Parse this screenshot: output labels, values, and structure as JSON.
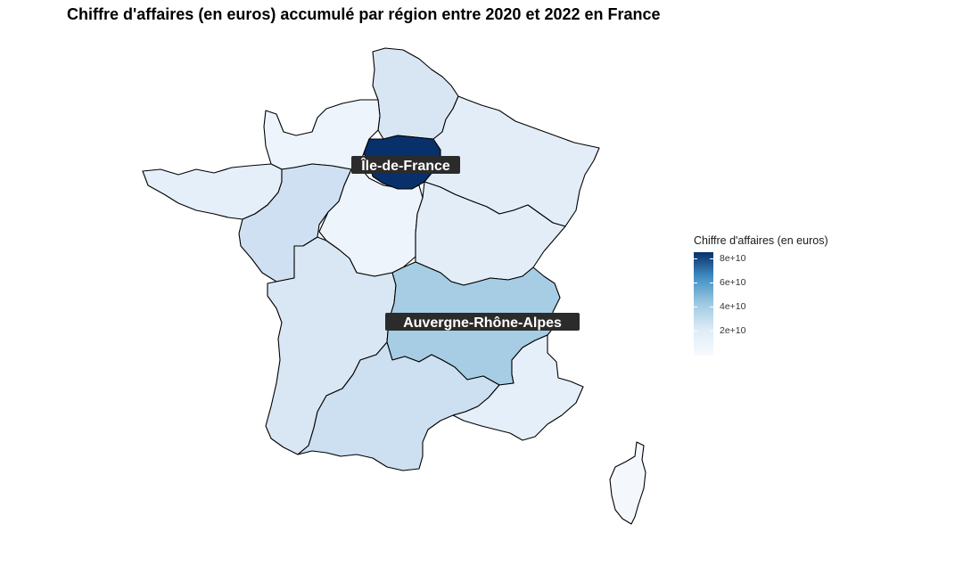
{
  "title": "Chiffre d'affaires (en euros) accumulé par région entre 2020 et 2022 en France",
  "legend": {
    "title": "Chiffre d'affaires (en euros)",
    "labels": [
      "8e+10",
      "6e+10",
      "4e+10",
      "2e+10"
    ],
    "values": [
      80000000000,
      60000000000,
      40000000000,
      20000000000
    ],
    "range": [
      1500000000,
      86000000000
    ],
    "scale": "Blues"
  },
  "map_labels": [
    "Île-de-France",
    "Auvergne-Rhône-Alpes"
  ],
  "colors": {
    "darkest": "#08306b",
    "dark": "#08519c",
    "mid": "#4292c6",
    "light": "#9ecae1",
    "lightest": "#f7fbff",
    "label_bg": "#2b2b2b"
  }
}
